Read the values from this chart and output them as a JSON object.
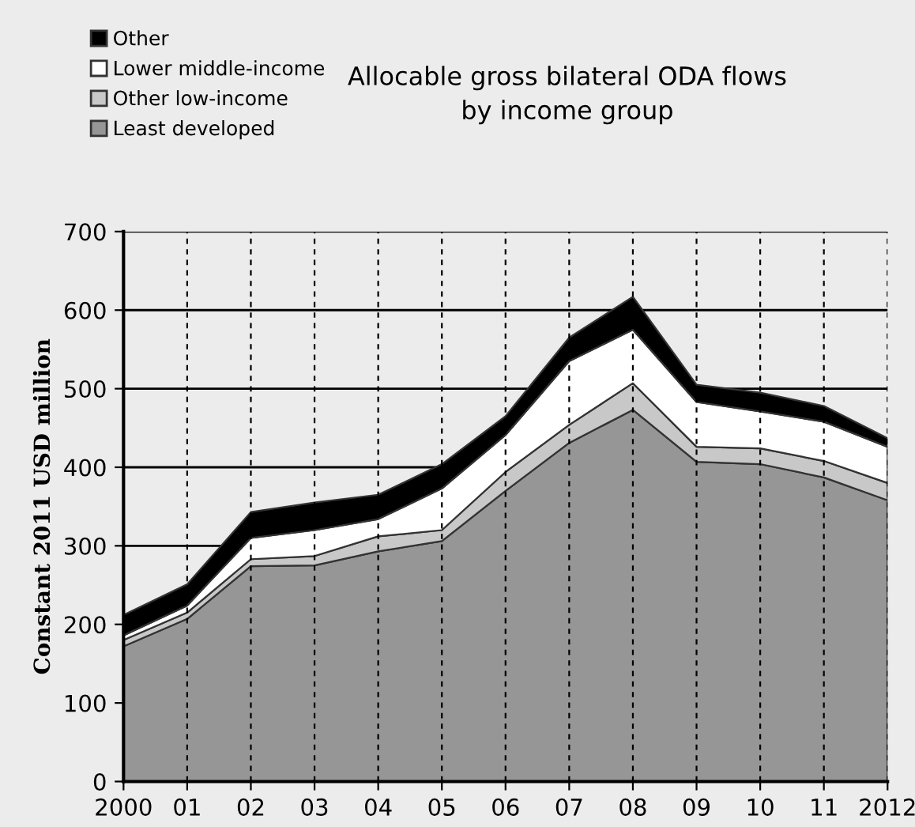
{
  "chart_data": {
    "type": "area",
    "stacked": true,
    "title": "Allocable gross bilateral ODA flows\nby income group",
    "ylabel": "Constant 2011 USD million",
    "categories": [
      "2000",
      "01",
      "02",
      "03",
      "04",
      "05",
      "06",
      "07",
      "08",
      "09",
      "10",
      "11",
      "2012"
    ],
    "series": [
      {
        "name": "Least developed",
        "color": "#969696",
        "values": [
          172,
          207,
          274,
          275,
          293,
          306,
          370,
          431,
          473,
          407,
          404,
          387,
          358
        ]
      },
      {
        "name": "Other low-income",
        "color": "#c8c8c8",
        "values": [
          8,
          8,
          9,
          12,
          19,
          14,
          24,
          23,
          34,
          19,
          20,
          21,
          22
        ]
      },
      {
        "name": "Lower middle-income",
        "color": "#ffffff",
        "values": [
          6,
          9,
          27,
          33,
          22,
          53,
          47,
          81,
          68,
          57,
          47,
          50,
          46
        ]
      },
      {
        "name": "Other",
        "color": "#000000",
        "values": [
          26,
          27,
          33,
          35,
          31,
          31,
          24,
          30,
          42,
          22,
          24,
          20,
          11
        ]
      }
    ],
    "ylim": [
      0,
      700
    ],
    "yticks": [
      0,
      100,
      200,
      300,
      400,
      500,
      600,
      700
    ],
    "grid": true,
    "legend": "top left"
  }
}
